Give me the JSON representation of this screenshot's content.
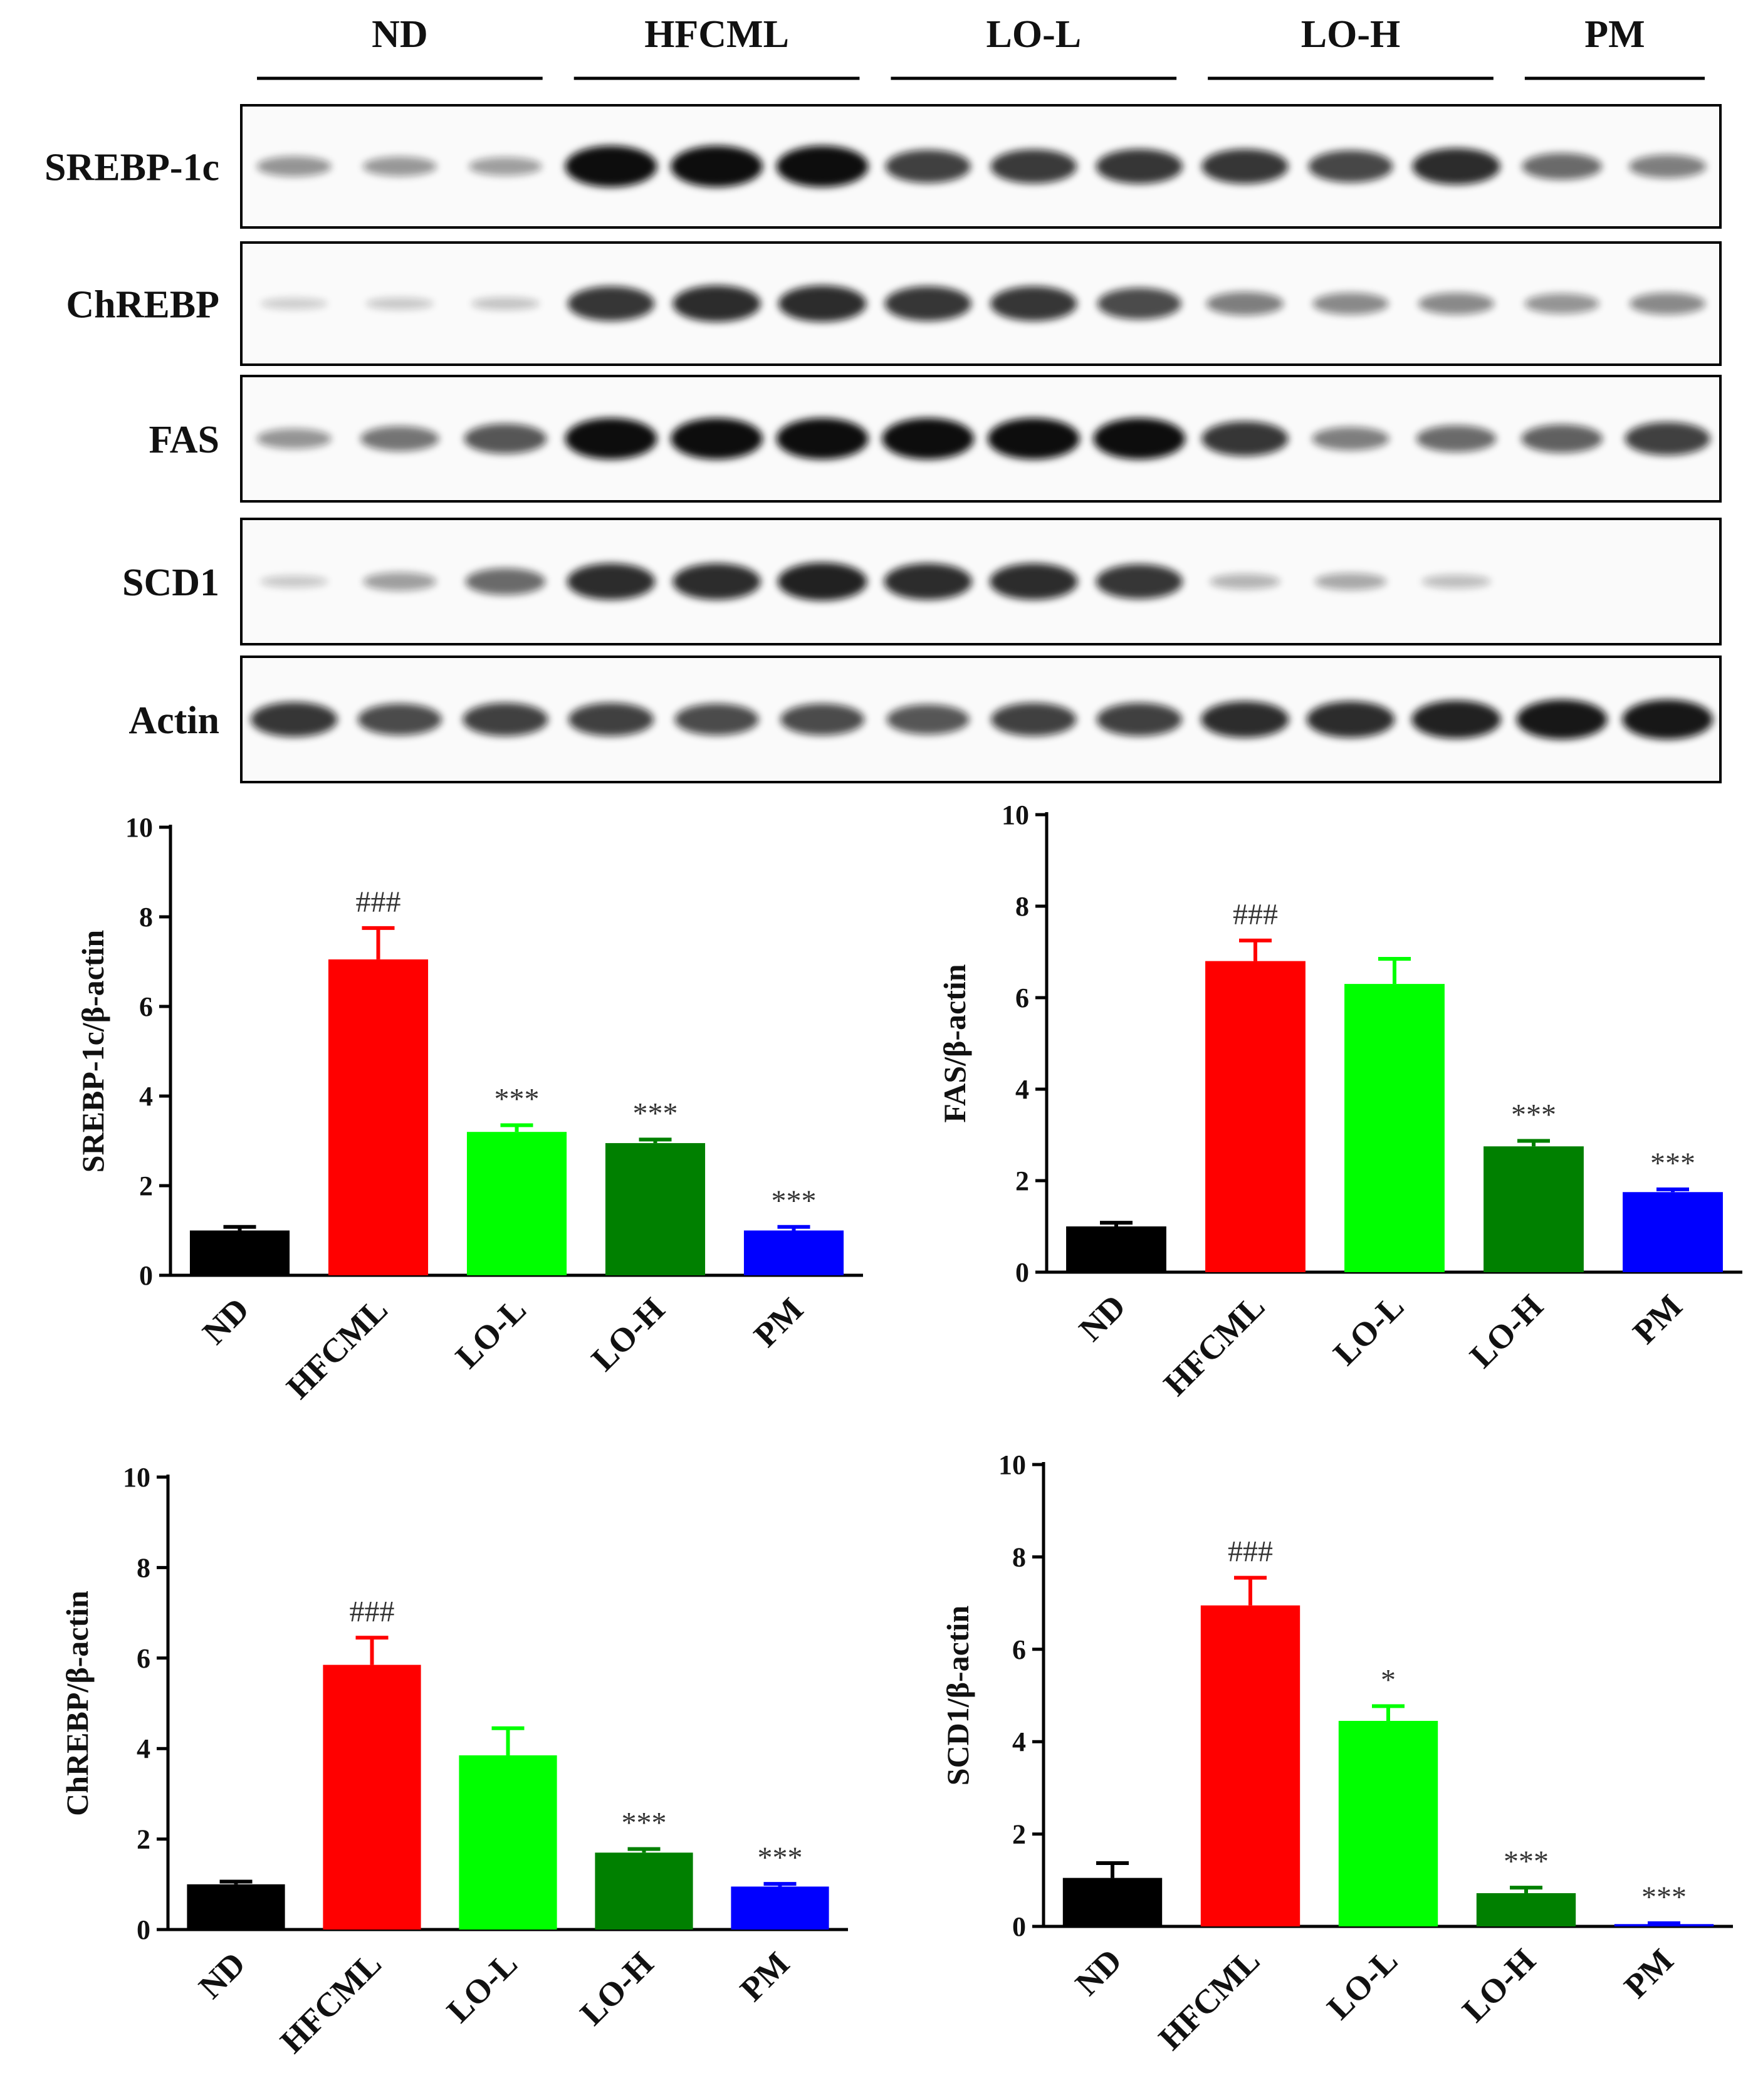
{
  "colors": {
    "ND": "#000000",
    "HFCML": "#ff0000",
    "LO-L": "#00ff00",
    "LO-H": "#008000",
    "PM": "#0000ff",
    "axis": "#000000",
    "band": "#0a0a0a"
  },
  "blot": {
    "groups": [
      "ND",
      "HFCML",
      "LO-L",
      "LO-H",
      "PM"
    ],
    "groups_lane_counts": [
      3,
      3,
      3,
      3,
      2
    ],
    "rows": [
      {
        "label": "SREBP-1c",
        "intensities": [
          0.35,
          0.33,
          0.3,
          1.0,
          1.0,
          1.0,
          0.75,
          0.78,
          0.8,
          0.8,
          0.72,
          0.85,
          0.55,
          0.45
        ]
      },
      {
        "label": "ChREBP",
        "intensities": [
          0.08,
          0.1,
          0.12,
          0.8,
          0.85,
          0.85,
          0.8,
          0.8,
          0.7,
          0.45,
          0.4,
          0.4,
          0.35,
          0.4
        ]
      },
      {
        "label": "FAS",
        "intensities": [
          0.35,
          0.5,
          0.65,
          1.0,
          1.0,
          1.0,
          1.0,
          1.0,
          1.0,
          0.8,
          0.45,
          0.55,
          0.6,
          0.75
        ]
      },
      {
        "label": "SCD1",
        "intensities": [
          0.1,
          0.3,
          0.55,
          0.85,
          0.85,
          0.9,
          0.85,
          0.85,
          0.8,
          0.2,
          0.25,
          0.15,
          0.0,
          0.0
        ]
      },
      {
        "label": "Actin",
        "intensities": [
          0.8,
          0.7,
          0.75,
          0.75,
          0.7,
          0.7,
          0.65,
          0.75,
          0.75,
          0.85,
          0.85,
          0.9,
          0.95,
          0.95
        ]
      }
    ]
  },
  "chart_data": [
    {
      "type": "bar",
      "categories": [
        "ND",
        "HFCML",
        "LO-L",
        "LO-H",
        "PM"
      ],
      "values": [
        1.0,
        7.05,
        3.2,
        2.95,
        1.0
      ],
      "errors": [
        0.08,
        0.7,
        0.15,
        0.08,
        0.08
      ],
      "annotations": [
        "",
        "###",
        "***",
        "***",
        "***"
      ],
      "title": "",
      "xlabel": "",
      "ylabel": "SREBP-1c/β-actin",
      "ylim": [
        0,
        10
      ],
      "yticks": [
        "0",
        "2",
        "4",
        "6",
        "8",
        "10"
      ]
    },
    {
      "type": "bar",
      "categories": [
        "ND",
        "HFCML",
        "LO-L",
        "LO-H",
        "PM"
      ],
      "values": [
        1.0,
        6.8,
        6.3,
        2.75,
        1.75
      ],
      "errors": [
        0.08,
        0.45,
        0.55,
        0.12,
        0.06
      ],
      "annotations": [
        "",
        "###",
        "",
        "***",
        "***"
      ],
      "title": "",
      "xlabel": "",
      "ylabel": "FAS/β-actin",
      "ylim": [
        0,
        10
      ],
      "yticks": [
        "0",
        "2",
        "4",
        "6",
        "8",
        "10"
      ]
    },
    {
      "type": "bar",
      "categories": [
        "ND",
        "HFCML",
        "LO-L",
        "LO-H",
        "PM"
      ],
      "values": [
        1.0,
        5.85,
        3.85,
        1.7,
        0.95
      ],
      "errors": [
        0.06,
        0.6,
        0.6,
        0.08,
        0.06
      ],
      "annotations": [
        "",
        "###",
        "",
        "***",
        "***"
      ],
      "title": "",
      "xlabel": "",
      "ylabel": "ChREBP/β-actin",
      "ylim": [
        0,
        10
      ],
      "yticks": [
        "0",
        "2",
        "4",
        "6",
        "8",
        "10"
      ]
    },
    {
      "type": "bar",
      "categories": [
        "ND",
        "HFCML",
        "LO-L",
        "LO-H",
        "PM"
      ],
      "values": [
        1.05,
        6.95,
        4.45,
        0.72,
        0.05
      ],
      "errors": [
        0.32,
        0.6,
        0.32,
        0.12,
        0.02
      ],
      "annotations": [
        "",
        "###",
        "*",
        "***",
        "***"
      ],
      "title": "",
      "xlabel": "",
      "ylabel": "SCD1/β-actin",
      "ylim": [
        0,
        10
      ],
      "yticks": [
        "0",
        "2",
        "4",
        "6",
        "8",
        "10"
      ]
    }
  ]
}
